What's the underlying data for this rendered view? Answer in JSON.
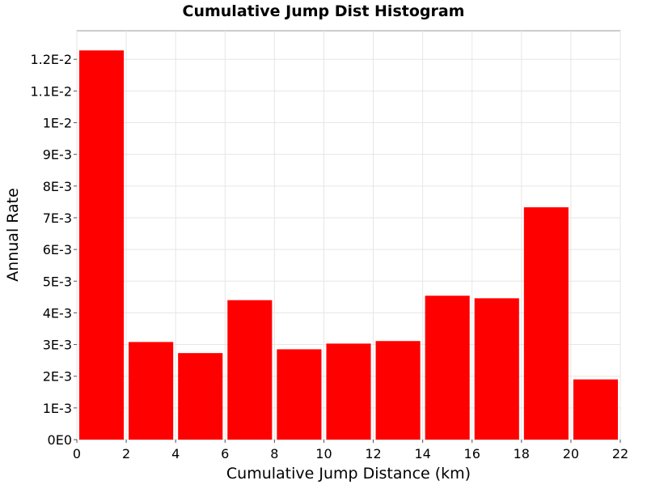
{
  "chart_data": {
    "type": "bar",
    "title": "Cumulative Jump Dist Histogram",
    "xlabel": "Cumulative Jump Distance (km)",
    "ylabel": "Annual Rate",
    "bar_color": "#ff0000",
    "bin_width": 2,
    "x": [
      1,
      3,
      5,
      7,
      9,
      11,
      13,
      15,
      17,
      19,
      21
    ],
    "values": [
      0.01228,
      0.00308,
      0.00273,
      0.0044,
      0.00285,
      0.00303,
      0.00311,
      0.00454,
      0.00446,
      0.00733,
      0.0019
    ],
    "xlim": [
      0,
      22
    ],
    "ylim": [
      0,
      0.0129
    ],
    "x_ticks": [
      {
        "value": 0,
        "label": "0"
      },
      {
        "value": 2,
        "label": "2"
      },
      {
        "value": 4,
        "label": "4"
      },
      {
        "value": 6,
        "label": "6"
      },
      {
        "value": 8,
        "label": "8"
      },
      {
        "value": 10,
        "label": "10"
      },
      {
        "value": 12,
        "label": "12"
      },
      {
        "value": 14,
        "label": "14"
      },
      {
        "value": 16,
        "label": "16"
      },
      {
        "value": 18,
        "label": "18"
      },
      {
        "value": 20,
        "label": "20"
      },
      {
        "value": 22,
        "label": "22"
      }
    ],
    "y_ticks": [
      {
        "value": 0,
        "label": "0E0"
      },
      {
        "value": 0.001,
        "label": "1E-3"
      },
      {
        "value": 0.002,
        "label": "2E-3"
      },
      {
        "value": 0.003,
        "label": "3E-3"
      },
      {
        "value": 0.004,
        "label": "4E-3"
      },
      {
        "value": 0.005,
        "label": "5E-3"
      },
      {
        "value": 0.006,
        "label": "6E-3"
      },
      {
        "value": 0.007,
        "label": "7E-3"
      },
      {
        "value": 0.008,
        "label": "8E-3"
      },
      {
        "value": 0.009,
        "label": "9E-3"
      },
      {
        "value": 0.01,
        "label": "1E-2"
      },
      {
        "value": 0.011,
        "label": "1.1E-2"
      },
      {
        "value": 0.012,
        "label": "1.2E-2"
      }
    ],
    "grid": true,
    "legend": "none"
  }
}
